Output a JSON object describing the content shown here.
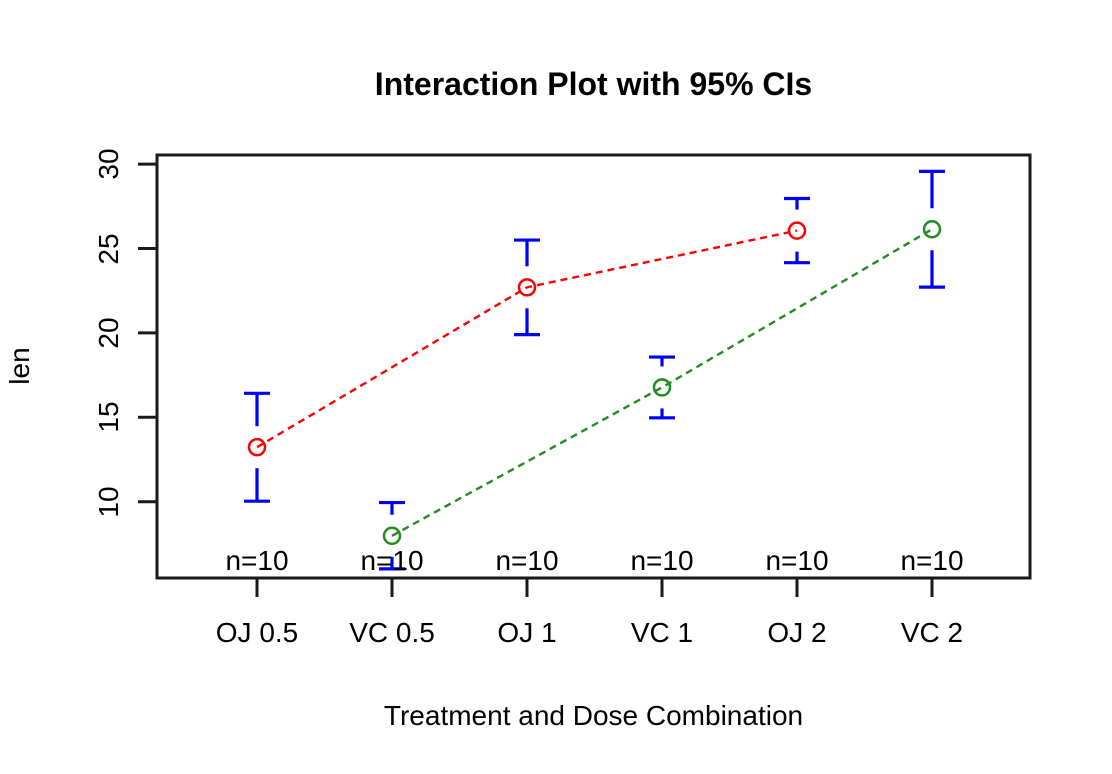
{
  "chart_title": "Interaction Plot with 95% CIs",
  "colors": {
    "background": "#ffffff",
    "axis": "#1a1a1a",
    "text": "#000000",
    "oj_series": "#ff0000",
    "vc_series": "#228b22",
    "ci_bar": "#0000ff"
  },
  "chart_data": {
    "type": "line",
    "title": "Interaction Plot with 95% CIs",
    "xlabel": "Treatment and Dose Combination",
    "ylabel": "len",
    "categories": [
      "OJ 0.5",
      "VC 0.5",
      "OJ 1",
      "VC 1",
      "OJ 2",
      "VC 2"
    ],
    "n_labels": [
      "n=10",
      "n=10",
      "n=10",
      "n=10",
      "n=10",
      "n=10"
    ],
    "y_ticks": [
      10,
      15,
      20,
      25,
      30
    ],
    "ylim": [
      5.5,
      30.5
    ],
    "grid": false,
    "legend_position": "none",
    "error_bars": {
      "kind": "95% CI",
      "color": "#0000ff"
    },
    "points": [
      {
        "category": "OJ 0.5",
        "series": "OJ",
        "mean": 13.23,
        "ci_lower": 10.03,
        "ci_upper": 16.42,
        "n": "n=10"
      },
      {
        "category": "VC 0.5",
        "series": "VC",
        "mean": 7.98,
        "ci_lower": 6.02,
        "ci_upper": 9.95,
        "n": "n=10"
      },
      {
        "category": "OJ 1",
        "series": "OJ",
        "mean": 22.7,
        "ci_lower": 19.9,
        "ci_upper": 25.5,
        "n": "n=10"
      },
      {
        "category": "VC 1",
        "series": "VC",
        "mean": 16.77,
        "ci_lower": 14.97,
        "ci_upper": 18.57,
        "n": "n=10"
      },
      {
        "category": "OJ 2",
        "series": "OJ",
        "mean": 26.06,
        "ci_lower": 24.16,
        "ci_upper": 27.96,
        "n": "n=10"
      },
      {
        "category": "VC 2",
        "series": "VC",
        "mean": 26.14,
        "ci_lower": 22.71,
        "ci_upper": 29.57,
        "n": "n=10"
      }
    ],
    "series": [
      {
        "name": "OJ",
        "color": "#ff0000",
        "category_indices": [
          0,
          2,
          4
        ],
        "values": [
          13.23,
          22.7,
          26.06
        ]
      },
      {
        "name": "VC",
        "color": "#228b22",
        "category_indices": [
          1,
          3,
          5
        ],
        "values": [
          7.98,
          16.77,
          26.14
        ]
      }
    ]
  }
}
